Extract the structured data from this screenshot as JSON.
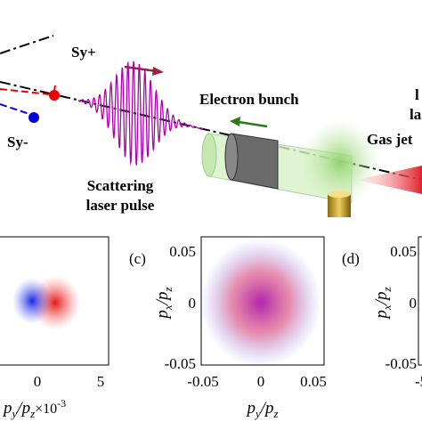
{
  "diagram": {
    "sy_plus": "Sy+",
    "sy_minus": "Sy-",
    "scattering": [
      "Scattering",
      "laser pulse"
    ],
    "electron_bunch": "Electron bunch",
    "gas_jet": "Gas jet",
    "cut_labels": [
      "l",
      "la"
    ]
  },
  "panels": [
    {
      "xticks": [
        "0",
        "5"
      ],
      "xlabel": [
        "p",
        "y",
        "/",
        "p",
        "z",
        "×10",
        "-3"
      ]
    },
    {
      "label": "(c)",
      "yticks": [
        "0.05",
        "0",
        "-0.05"
      ],
      "xticks": [
        "-0.05",
        "0",
        "0.05"
      ],
      "ylabel": [
        "p",
        "x",
        "/",
        "p",
        "z"
      ],
      "xlabel": [
        "p",
        "y",
        "/",
        "p",
        "z"
      ]
    },
    {
      "label": "(d)",
      "yticks": [
        "0.05",
        "0",
        "-0.05"
      ],
      "xticks": [
        "-5"
      ],
      "ylabel": [
        "p",
        "x",
        "/",
        "p",
        "z"
      ]
    }
  ]
}
